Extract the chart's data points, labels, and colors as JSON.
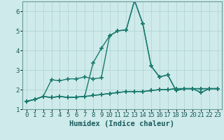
{
  "xlabel": "Humidex (Indice chaleur)",
  "x": [
    0,
    1,
    2,
    3,
    4,
    5,
    6,
    7,
    8,
    9,
    10,
    11,
    12,
    13,
    14,
    15,
    16,
    17,
    18,
    19,
    20,
    21,
    22,
    23
  ],
  "line1": [
    1.4,
    1.5,
    1.65,
    1.6,
    1.65,
    1.6,
    1.62,
    1.65,
    1.7,
    1.75,
    1.8,
    1.85,
    1.9,
    1.9,
    1.9,
    1.95,
    2.0,
    2.0,
    2.05,
    2.05,
    2.05,
    2.05,
    2.05,
    2.05
  ],
  "line2": [
    1.4,
    1.5,
    1.65,
    2.5,
    2.45,
    2.55,
    2.55,
    2.65,
    2.55,
    2.6,
    4.75,
    5.0,
    5.05,
    6.55,
    5.35,
    3.2,
    2.65,
    2.75,
    1.95,
    2.05,
    2.05,
    1.85,
    2.05,
    2.05
  ],
  "line3": [
    1.4,
    1.5,
    1.65,
    1.6,
    1.65,
    1.6,
    1.62,
    1.65,
    3.35,
    4.1,
    4.75,
    5.0,
    5.05,
    6.55,
    5.35,
    3.2,
    2.65,
    2.75,
    1.95,
    2.05,
    2.05,
    1.85,
    2.05,
    2.05
  ],
  "line4": [
    1.4,
    1.5,
    1.65,
    1.6,
    1.65,
    1.6,
    1.62,
    1.65,
    1.7,
    1.75,
    1.8,
    1.85,
    1.9,
    1.9,
    1.9,
    1.95,
    2.0,
    2.0,
    2.05,
    2.05,
    2.05,
    2.05,
    2.05,
    2.05
  ],
  "color": "#1a7a6e",
  "bg_color": "#ceeaea",
  "grid_color": "#b8d8d8",
  "ylim": [
    1.0,
    6.5
  ],
  "xlim": [
    -0.5,
    23.5
  ],
  "yticks": [
    1,
    2,
    3,
    4,
    5,
    6
  ],
  "xtick_labels": [
    "0",
    "1",
    "2",
    "3",
    "4",
    "5",
    "6",
    "7",
    "8",
    "9",
    "10",
    "11",
    "12",
    "13",
    "14",
    "15",
    "16",
    "17",
    "18",
    "19",
    "20",
    "21",
    "22",
    "23"
  ],
  "marker": "+",
  "markersize": 4,
  "linewidth": 1.0,
  "tick_fontsize": 6.5,
  "xlabel_fontsize": 7.5
}
